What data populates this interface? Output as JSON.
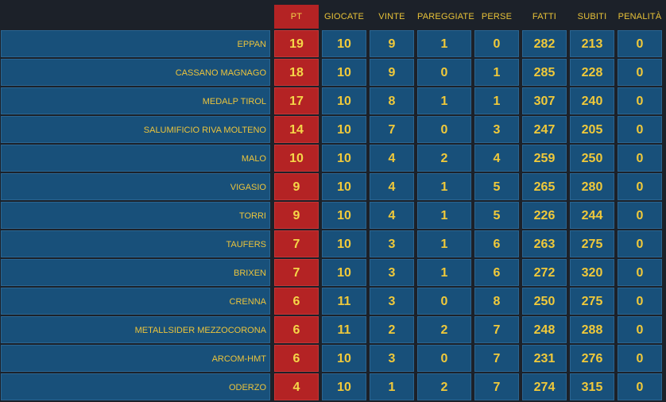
{
  "columns": {
    "pt": "PT",
    "giocate": "GIOCATE",
    "vinte": "VINTE",
    "pareggiate": "PAREGGIATE",
    "perse": "PERSE",
    "fatti": "FATTI",
    "subiti": "SUBITI",
    "penalita": "PENALITÀ"
  },
  "rows": [
    {
      "team": "EPPAN",
      "pt": "19",
      "giocate": "10",
      "vinte": "9",
      "pareggiate": "1",
      "perse": "0",
      "fatti": "282",
      "subiti": "213",
      "penalita": "0"
    },
    {
      "team": "CASSANO MAGNAGO",
      "pt": "18",
      "giocate": "10",
      "vinte": "9",
      "pareggiate": "0",
      "perse": "1",
      "fatti": "285",
      "subiti": "228",
      "penalita": "0"
    },
    {
      "team": "MEDALP TIROL",
      "pt": "17",
      "giocate": "10",
      "vinte": "8",
      "pareggiate": "1",
      "perse": "1",
      "fatti": "307",
      "subiti": "240",
      "penalita": "0"
    },
    {
      "team": "SALUMIFICIO RIVA MOLTENO",
      "pt": "14",
      "giocate": "10",
      "vinte": "7",
      "pareggiate": "0",
      "perse": "3",
      "fatti": "247",
      "subiti": "205",
      "penalita": "0"
    },
    {
      "team": "MALO",
      "pt": "10",
      "giocate": "10",
      "vinte": "4",
      "pareggiate": "2",
      "perse": "4",
      "fatti": "259",
      "subiti": "250",
      "penalita": "0"
    },
    {
      "team": "VIGASIO",
      "pt": "9",
      "giocate": "10",
      "vinte": "4",
      "pareggiate": "1",
      "perse": "5",
      "fatti": "265",
      "subiti": "280",
      "penalita": "0"
    },
    {
      "team": "TORRI",
      "pt": "9",
      "giocate": "10",
      "vinte": "4",
      "pareggiate": "1",
      "perse": "5",
      "fatti": "226",
      "subiti": "244",
      "penalita": "0"
    },
    {
      "team": "TAUFERS",
      "pt": "7",
      "giocate": "10",
      "vinte": "3",
      "pareggiate": "1",
      "perse": "6",
      "fatti": "263",
      "subiti": "275",
      "penalita": "0"
    },
    {
      "team": "BRIXEN",
      "pt": "7",
      "giocate": "10",
      "vinte": "3",
      "pareggiate": "1",
      "perse": "6",
      "fatti": "272",
      "subiti": "320",
      "penalita": "0"
    },
    {
      "team": "CRENNA",
      "pt": "6",
      "giocate": "11",
      "vinte": "3",
      "pareggiate": "0",
      "perse": "8",
      "fatti": "250",
      "subiti": "275",
      "penalita": "0"
    },
    {
      "team": "METALLSIDER MEZZOCORONA",
      "pt": "6",
      "giocate": "11",
      "vinte": "2",
      "pareggiate": "2",
      "perse": "7",
      "fatti": "248",
      "subiti": "288",
      "penalita": "0"
    },
    {
      "team": "ARCOM-HMT",
      "pt": "6",
      "giocate": "10",
      "vinte": "3",
      "pareggiate": "0",
      "perse": "7",
      "fatti": "231",
      "subiti": "276",
      "penalita": "0"
    },
    {
      "team": "ODERZO",
      "pt": "4",
      "giocate": "10",
      "vinte": "1",
      "pareggiate": "2",
      "perse": "7",
      "fatti": "274",
      "subiti": "315",
      "penalita": "0"
    }
  ],
  "colors": {
    "background": "#1c2129",
    "cell": "#18507a",
    "points": "#b42324",
    "text": "#f0c93a"
  }
}
